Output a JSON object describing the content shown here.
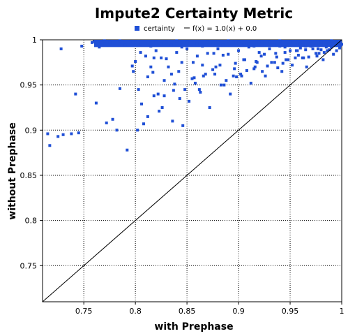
{
  "chart_data": {
    "type": "scatter",
    "title": "Impute2 Certainty Metric",
    "xlabel": "with Prephase",
    "ylabel": "without Prephase",
    "xlim": [
      0.71,
      1.0
    ],
    "ylim": [
      0.71,
      1.0
    ],
    "x_ticks": [
      "0.75",
      "0.8",
      "0.85",
      "0.9",
      "0.95",
      "1"
    ],
    "y_ticks": [
      "0.75",
      "0.8",
      "0.85",
      "0.9",
      "0.95",
      "1"
    ],
    "grid": true,
    "legend_position": "top",
    "colors": {
      "series": "#1f4fd6",
      "line": "#000000"
    },
    "series": [
      {
        "name": "certainty",
        "x": [
          0.728,
          0.748,
          0.758,
          0.765,
          0.77,
          0.78,
          0.79,
          0.8,
          0.805,
          0.815,
          0.825,
          0.835,
          0.845,
          0.855,
          0.865,
          0.875,
          0.885,
          0.895,
          0.905,
          0.915,
          0.925,
          0.935,
          0.945,
          0.955,
          0.965,
          0.975,
          0.985,
          0.995,
          0.76,
          0.775,
          0.785,
          0.795,
          0.81,
          0.82,
          0.83,
          0.84,
          0.85,
          0.86,
          0.87,
          0.88,
          0.89,
          0.9,
          0.91,
          0.92,
          0.93,
          0.94,
          0.95,
          0.96,
          0.97,
          0.98,
          0.99,
          0.715,
          0.717,
          0.725,
          0.73,
          0.738,
          0.742,
          0.745,
          0.762,
          0.772,
          0.778,
          0.782,
          0.785,
          0.792,
          0.798,
          0.802,
          0.806,
          0.808,
          0.812,
          0.818,
          0.822,
          0.826,
          0.828,
          0.832,
          0.836,
          0.842,
          0.846,
          0.852,
          0.856,
          0.862,
          0.866,
          0.872,
          0.876,
          0.882,
          0.886,
          0.892,
          0.896,
          0.902,
          0.906,
          0.912,
          0.916,
          0.922,
          0.926,
          0.932,
          0.936,
          0.942,
          0.946,
          0.952,
          0.956,
          0.962,
          0.966,
          0.972,
          0.976,
          0.982,
          0.986,
          0.992,
          0.8,
          0.81,
          0.82,
          0.83,
          0.84,
          0.85,
          0.86,
          0.87,
          0.88,
          0.89,
          0.9,
          0.91,
          0.92,
          0.93,
          0.94,
          0.95,
          0.96,
          0.97,
          0.98,
          0.99,
          1.0,
          0.805,
          0.815,
          0.825,
          0.835,
          0.845,
          0.855,
          0.865,
          0.875,
          0.885,
          0.895,
          0.905,
          0.915,
          0.925,
          0.935,
          0.945,
          0.955,
          0.965,
          0.975,
          0.985,
          0.995,
          0.812,
          0.828,
          0.848,
          0.868,
          0.888,
          0.908,
          0.928,
          0.948,
          0.968,
          0.988,
          0.818,
          0.838,
          0.858,
          0.878,
          0.898,
          0.918,
          0.938,
          0.958,
          0.978,
          0.998,
          0.803,
          0.823,
          0.843,
          0.863,
          0.883,
          0.903,
          0.923,
          0.943,
          0.963,
          0.983,
          0.797,
          0.817,
          0.837,
          0.857,
          0.877,
          0.897,
          0.917,
          0.937,
          0.957,
          0.977
        ],
        "y": [
          0.99,
          0.993,
          0.997,
          0.992,
          0.999,
          0.996,
          0.994,
          0.997,
          0.995,
          0.993,
          0.996,
          0.994,
          0.992,
          0.995,
          0.993,
          0.996,
          0.994,
          0.997,
          0.995,
          0.993,
          0.996,
          0.994,
          0.992,
          0.995,
          0.993,
          0.996,
          0.994,
          0.997,
          0.998,
          0.997,
          0.999,
          0.998,
          0.996,
          0.998,
          0.997,
          0.999,
          0.998,
          0.996,
          0.998,
          0.997,
          0.999,
          0.998,
          0.996,
          0.998,
          0.997,
          0.999,
          0.998,
          0.996,
          0.998,
          0.997,
          0.999,
          0.896,
          0.883,
          0.893,
          0.895,
          0.896,
          0.94,
          0.897,
          0.93,
          0.908,
          0.912,
          0.9,
          0.946,
          0.878,
          0.965,
          0.9,
          0.929,
          0.907,
          0.959,
          0.98,
          0.94,
          0.925,
          0.955,
          0.97,
          0.91,
          0.965,
          0.905,
          0.932,
          0.975,
          0.945,
          0.96,
          0.925,
          0.985,
          0.972,
          0.95,
          0.94,
          0.968,
          0.962,
          0.978,
          0.952,
          0.97,
          0.982,
          0.96,
          0.975,
          0.985,
          0.965,
          0.978,
          0.972,
          0.988,
          0.98,
          0.97,
          0.99,
          0.982,
          0.978,
          0.988,
          0.984,
          0.976,
          0.982,
          0.988,
          0.979,
          0.986,
          0.99,
          0.982,
          0.985,
          0.99,
          0.984,
          0.988,
          0.992,
          0.986,
          0.99,
          0.993,
          0.988,
          0.991,
          0.993,
          0.989,
          0.992,
          0.995,
          0.986,
          0.97,
          0.98,
          0.962,
          0.975,
          0.957,
          0.972,
          0.967,
          0.983,
          0.96,
          0.978,
          0.968,
          0.984,
          0.975,
          0.986,
          0.98,
          0.989,
          0.985,
          0.992,
          0.988,
          0.915,
          0.938,
          0.945,
          0.962,
          0.955,
          0.966,
          0.971,
          0.978,
          0.981,
          0.989,
          0.938,
          0.951,
          0.952,
          0.97,
          0.959,
          0.975,
          0.969,
          0.983,
          0.985,
          0.991,
          0.945,
          0.921,
          0.935,
          0.942,
          0.95,
          0.96,
          0.965,
          0.974,
          0.98,
          0.986,
          0.971,
          0.964,
          0.944,
          0.958,
          0.962,
          0.974,
          0.976,
          0.981,
          0.988,
          0.99
        ]
      },
      {
        "name": "f(x) = 1.0(x) + 0.0",
        "type": "line",
        "x": [
          0.71,
          1.0
        ],
        "y": [
          0.71,
          1.0
        ]
      }
    ]
  }
}
